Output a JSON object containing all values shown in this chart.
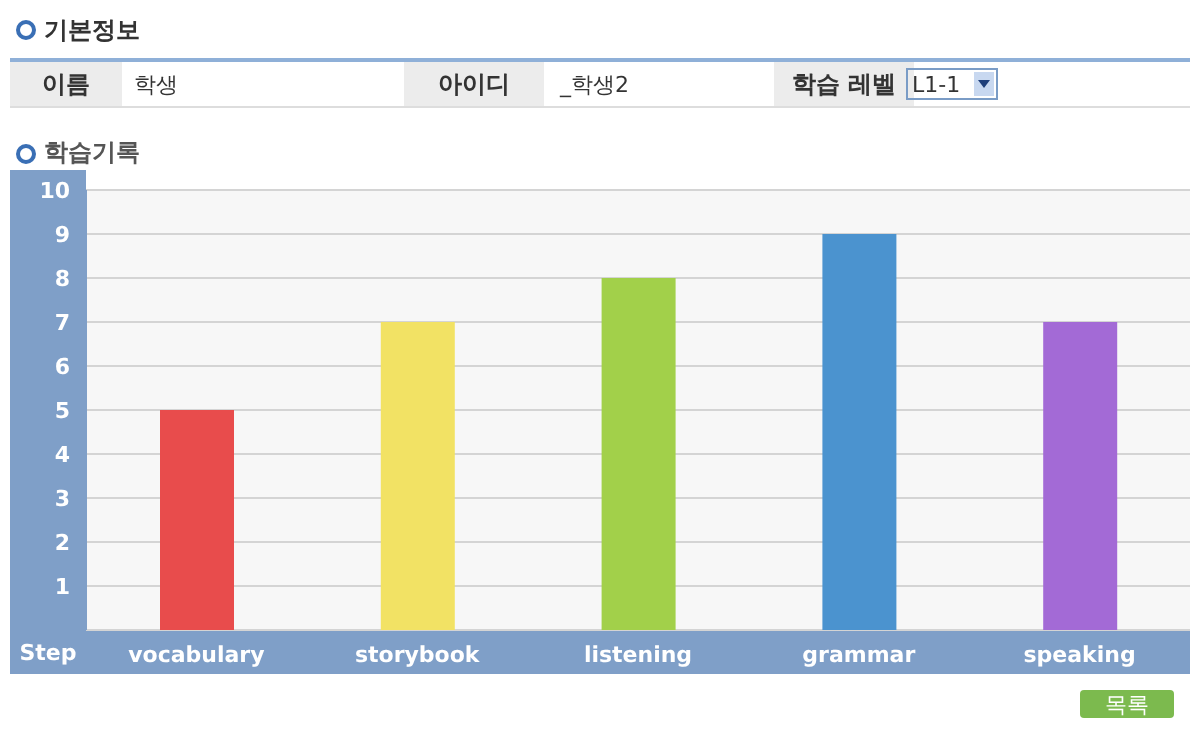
{
  "chart_data": {
    "type": "bar",
    "title": "학습기록",
    "xlabel": "Step",
    "categories": [
      "vocabulary",
      "storybook",
      "listening",
      "grammar",
      "speaking"
    ],
    "values": [
      5,
      7,
      8,
      9,
      7
    ],
    "colors": [
      "#e84c4c",
      "#f2e264",
      "#a2d04a",
      "#4b93cf",
      "#a36ad6"
    ],
    "ylim": [
      0,
      10
    ],
    "yticks": [
      1,
      2,
      3,
      4,
      5,
      6,
      7,
      8,
      9,
      10
    ],
    "grid": "y",
    "annotations": [
      "기본정보",
      "이름",
      "학생",
      "아이디",
      "_학생2",
      "학습 레벨",
      "L1-1",
      "목록"
    ]
  }
}
